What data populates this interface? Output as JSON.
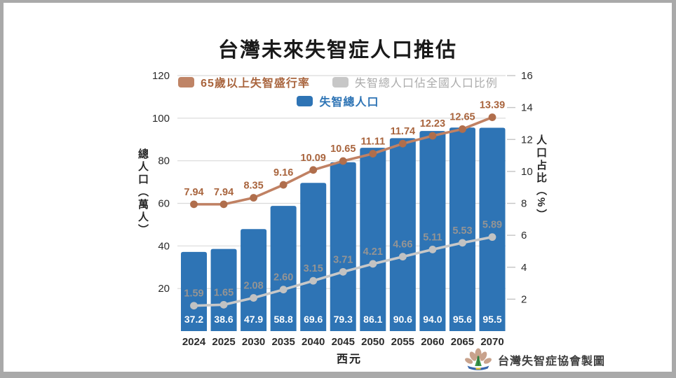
{
  "page": {
    "title": "台灣未來失智症人口推估",
    "footer": {
      "credit": "台灣失智症協會製圖",
      "logo": "taiwan-dementia-association-logo"
    },
    "colors": {
      "frame": "#a9a9a9",
      "background": "#ffffff",
      "title_text": "#1a1a1a",
      "axis_text": "#2b2b2b",
      "grid": "#d9d9d9",
      "right_tick": "#c4c4c4",
      "bar": "#2e74b5",
      "bar_label": "#ffffff",
      "brown_line": "#c08163",
      "brown_point": "#b06e4c",
      "brown_label": "#a9653e",
      "gray_line": "#c8c8c8",
      "gray_point": "#c2c2c2",
      "gray_label": "#949494",
      "footer_text": "#3d3d3d"
    }
  },
  "chart_data": {
    "type": "combo_bar_line",
    "title": "台灣未來失智症人口推估",
    "xlabel": "西元",
    "categories": [
      "2024",
      "2025",
      "2030",
      "2035",
      "2040",
      "2045",
      "2050",
      "2055",
      "2060",
      "2065",
      "2070"
    ],
    "left_axis": {
      "label": "總人口（萬人）",
      "ticks": [
        20,
        40,
        60,
        80,
        100,
        120
      ],
      "range": [
        0,
        120
      ]
    },
    "right_axis": {
      "label": "人口占比（%）",
      "ticks": [
        2,
        4,
        6,
        8,
        10,
        12,
        14,
        16
      ],
      "range": [
        0,
        16
      ]
    },
    "grid": "horizontal-only",
    "legend_position": "top-inside",
    "series": [
      {
        "name": "失智總人口",
        "type": "bar",
        "axis": "left",
        "color": "#2e74b5",
        "label_color": "#ffffff",
        "values": [
          "37.2",
          "38.6",
          "47.9",
          "58.8",
          "69.6",
          "79.3",
          "86.1",
          "90.6",
          "94.0",
          "95.6",
          "95.5"
        ]
      },
      {
        "name": "65歲以上失智盛行率",
        "type": "line",
        "axis": "right",
        "color": "#c08163",
        "point_color": "#b06e4c",
        "label_color": "#a9653e",
        "values": [
          "7.94",
          "7.94",
          "8.35",
          "9.16",
          "10.09",
          "10.65",
          "11.11",
          "11.74",
          "12.23",
          "12.65",
          "13.39"
        ]
      },
      {
        "name": "失智總人口佔全國人口比例",
        "type": "line",
        "axis": "right",
        "color": "#c8c8c8",
        "point_color": "#c2c2c2",
        "label_color": "#949494",
        "values": [
          "1.59",
          "1.65",
          "2.08",
          "2.60",
          "3.15",
          "3.71",
          "4.21",
          "4.66",
          "5.11",
          "5.53",
          "5.89"
        ]
      }
    ],
    "legend": {
      "rows": [
        [
          {
            "label": "65歲以上失智盛行率",
            "swatch": "#bf8466",
            "text_color": "#a9653e"
          },
          {
            "label": "失智總人口佔全國人口比例",
            "swatch": "#c7c7c7",
            "text_color": "#ababab"
          }
        ],
        [
          {
            "label": "失智總人口",
            "swatch": "#2e74b5",
            "text_color": "#2e74b5"
          }
        ]
      ]
    }
  }
}
